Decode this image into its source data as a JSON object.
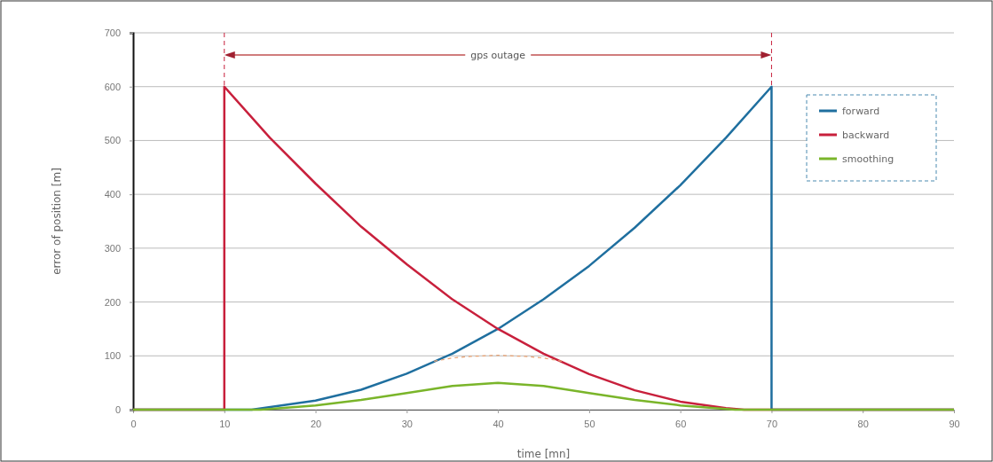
{
  "chart_data": {
    "type": "line",
    "xlabel": "time [mn]",
    "ylabel": "error of position [m]",
    "xlim": [
      0,
      90
    ],
    "xticks": [
      0,
      10,
      20,
      30,
      40,
      50,
      60,
      70,
      80,
      90
    ],
    "ylim": [
      0,
      700
    ],
    "yticks": [
      0,
      100,
      200,
      300,
      400,
      500,
      600,
      700
    ],
    "grid": "y",
    "legend": "top right",
    "marker": "none",
    "line_style": "solid",
    "series": [
      {
        "name": "forward",
        "color": "#1f6f9f",
        "x": [
          0,
          10,
          13,
          20,
          25,
          30,
          35,
          40,
          45,
          50,
          55,
          60,
          65,
          70,
          70,
          90
        ],
        "values": [
          0,
          0,
          0,
          17,
          37,
          67,
          104,
          150,
          205,
          267,
          338,
          417,
          505,
          600,
          0,
          0
        ]
      },
      {
        "name": "backward",
        "color": "#c8203c",
        "x": [
          0,
          10,
          10,
          15,
          20,
          25,
          30,
          35,
          40,
          45,
          50,
          55,
          60,
          65,
          67,
          70,
          90
        ],
        "values": [
          0,
          0,
          600,
          505,
          420,
          340,
          270,
          205,
          150,
          104,
          66,
          36,
          15,
          3,
          0,
          0,
          0
        ]
      },
      {
        "name": "smoothing",
        "color": "#7ab52a",
        "x": [
          0,
          14,
          20,
          25,
          30,
          35,
          40,
          45,
          50,
          55,
          60,
          66,
          90
        ],
        "values": [
          0,
          0,
          8,
          18,
          31,
          44,
          50,
          44,
          31,
          18,
          8,
          0,
          0
        ]
      },
      {
        "color": "#e8a070",
        "line_style": "dashed",
        "x": [
          33,
          35,
          37,
          40,
          43,
          45,
          47
        ],
        "values": [
          90,
          96,
          99,
          101,
          99,
          96,
          90
        ]
      }
    ],
    "ref_lines": [
      {
        "axis": "x",
        "value": 10,
        "color": "#c8203c",
        "line_style": "dashed"
      },
      {
        "axis": "x",
        "value": 70,
        "color": "#c8203c",
        "line_style": "dashed"
      }
    ],
    "annotations": [
      "gps outage"
    ]
  }
}
